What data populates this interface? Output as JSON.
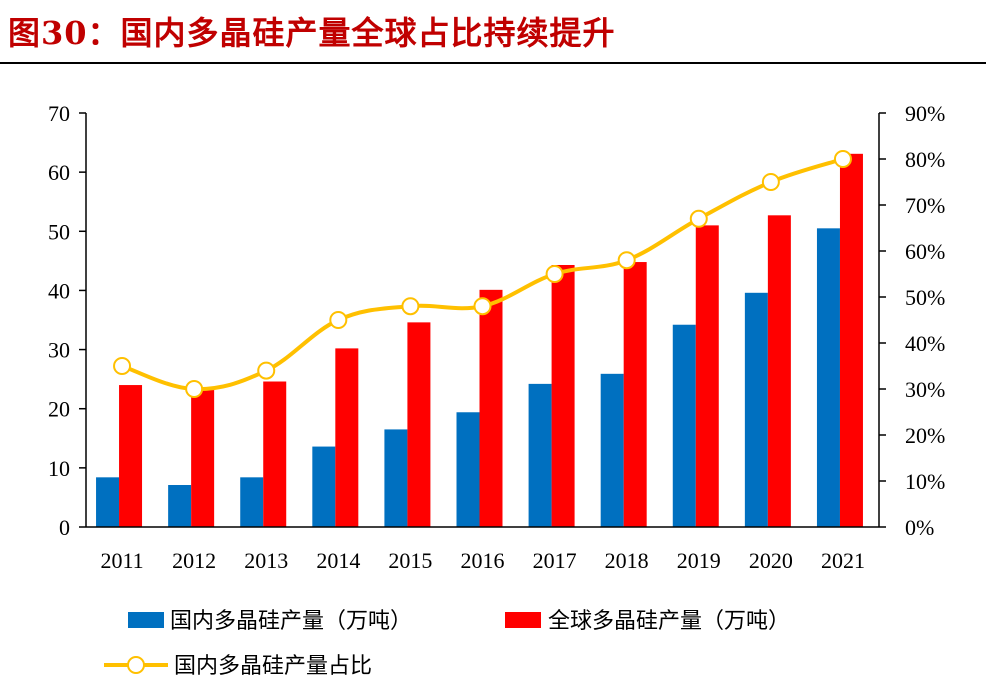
{
  "title": "图30：国内多晶硅产量全球占比持续提升",
  "colors": {
    "title": "#c00000",
    "domestic": "#0070c0",
    "global": "#ff0000",
    "share_line": "#ffc000",
    "marker_fill": "#ffffff"
  },
  "chart_data": {
    "type": "bar",
    "categories": [
      "2011",
      "2012",
      "2013",
      "2014",
      "2015",
      "2016",
      "2017",
      "2018",
      "2019",
      "2020",
      "2021"
    ],
    "series": [
      {
        "name": "国内多晶硅产量（万吨）",
        "type": "bar",
        "axis": "left",
        "values": [
          8.4,
          7.1,
          8.4,
          13.6,
          16.5,
          19.4,
          24.2,
          25.9,
          34.2,
          39.6,
          50.5
        ]
      },
      {
        "name": "全球多晶硅产量（万吨）",
        "type": "bar",
        "axis": "left",
        "values": [
          24.0,
          23.5,
          24.6,
          30.2,
          34.6,
          40.1,
          44.3,
          44.8,
          51.0,
          52.7,
          63.1
        ]
      },
      {
        "name": "国内多晶硅产量占比",
        "type": "line",
        "axis": "right",
        "values": [
          0.35,
          0.3,
          0.34,
          0.45,
          0.48,
          0.48,
          0.55,
          0.58,
          0.67,
          0.75,
          0.8
        ]
      }
    ],
    "y_left": {
      "min": 0,
      "max": 70,
      "ticks": [
        "0",
        "10",
        "20",
        "30",
        "40",
        "50",
        "60",
        "70"
      ]
    },
    "y_right": {
      "min": 0,
      "max": 0.9,
      "ticks": [
        "0%",
        "10%",
        "20%",
        "30%",
        "40%",
        "50%",
        "60%",
        "70%",
        "80%",
        "90%"
      ]
    },
    "grid": false,
    "legend_position": "bottom"
  }
}
